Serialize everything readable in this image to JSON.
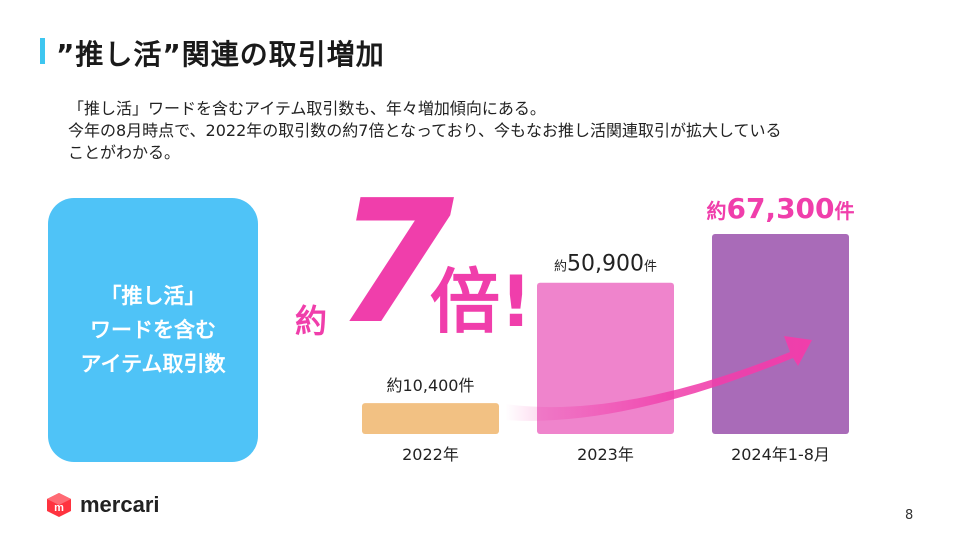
{
  "header": {
    "title": "”推し活”関連の取引増加"
  },
  "description": {
    "line1": "「推し活」ワードを含むアイテム取引数も、年々増加傾向にある。",
    "line2": "今年の8月時点で、2022年の取引数の約7倍となっており、今もなお推し活関連取引が拡大している",
    "line3": "ことがわかる。"
  },
  "card": {
    "line1": "「推し活」",
    "line2": "ワードを含む",
    "line3": "アイテム取引数"
  },
  "multiplier": {
    "prefix": "約",
    "number": "7",
    "suffix": "倍!"
  },
  "chart_data": {
    "type": "bar",
    "title": "「推し活」ワードを含むアイテム取引数",
    "categories": [
      "2022年",
      "2023年",
      "2024年1-8月"
    ],
    "values": [
      10400,
      50900,
      67300
    ],
    "ylim": [
      0,
      67300
    ],
    "label_prefix": "約",
    "label_suffix": "件",
    "value_labels": [
      "10,400",
      "50,900",
      "67,300"
    ],
    "colors": [
      "#f2c183",
      "#ef84cc",
      "#a96bb8"
    ],
    "accent": "#f03eab",
    "xlabel": "",
    "ylabel": "",
    "grid": false
  },
  "footer": {
    "brand": "mercari",
    "page": "8",
    "logo_color": "#ff333f"
  }
}
